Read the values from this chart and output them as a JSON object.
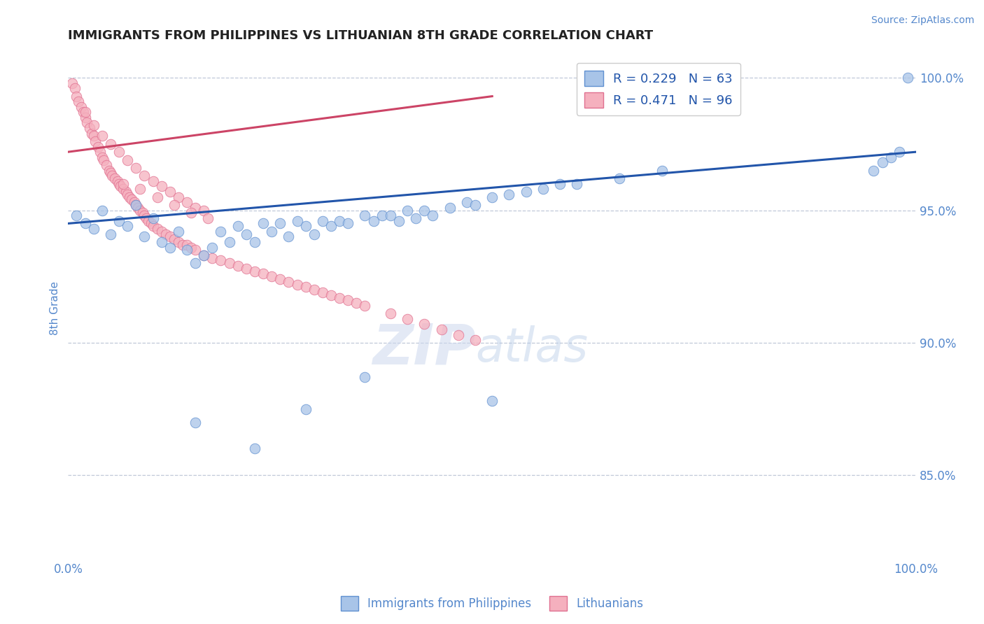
{
  "title": "IMMIGRANTS FROM PHILIPPINES VS LITHUANIAN 8TH GRADE CORRELATION CHART",
  "source_text": "Source: ZipAtlas.com",
  "ylabel": "8th Grade",
  "watermark_zip": "ZIP",
  "watermark_atlas": "atlas",
  "blue_label": "Immigrants from Philippines",
  "pink_label": "Lithuanians",
  "blue_R": 0.229,
  "blue_N": 63,
  "pink_R": 0.471,
  "pink_N": 96,
  "blue_color": "#a8c4e8",
  "pink_color": "#f5b0be",
  "blue_edge_color": "#6090d0",
  "pink_edge_color": "#e07090",
  "blue_line_color": "#2255aa",
  "pink_line_color": "#cc4466",
  "xlim": [
    0.0,
    1.0
  ],
  "ylim": [
    0.818,
    1.008
  ],
  "yticks": [
    0.85,
    0.9,
    0.95,
    1.0
  ],
  "ytick_labels": [
    "85.0%",
    "90.0%",
    "95.0%",
    "100.0%"
  ],
  "xtick_labels": [
    "0.0%",
    "100.0%"
  ],
  "title_fontsize": 13,
  "axis_label_color": "#5588cc",
  "grid_color": "#c0c8d8",
  "blue_scatter_x": [
    0.01,
    0.02,
    0.03,
    0.04,
    0.05,
    0.06,
    0.07,
    0.08,
    0.09,
    0.1,
    0.11,
    0.12,
    0.13,
    0.14,
    0.15,
    0.16,
    0.17,
    0.18,
    0.19,
    0.2,
    0.21,
    0.22,
    0.23,
    0.24,
    0.25,
    0.26,
    0.27,
    0.28,
    0.29,
    0.3,
    0.31,
    0.32,
    0.33,
    0.35,
    0.36,
    0.37,
    0.38,
    0.39,
    0.4,
    0.41,
    0.42,
    0.43,
    0.45,
    0.47,
    0.48,
    0.5,
    0.52,
    0.54,
    0.56,
    0.58,
    0.6,
    0.65,
    0.7,
    0.95,
    0.96,
    0.97,
    0.98,
    0.99,
    0.15,
    0.22,
    0.28,
    0.35,
    0.5
  ],
  "blue_scatter_y": [
    0.948,
    0.945,
    0.943,
    0.95,
    0.941,
    0.946,
    0.944,
    0.952,
    0.94,
    0.947,
    0.938,
    0.936,
    0.942,
    0.935,
    0.93,
    0.933,
    0.936,
    0.942,
    0.938,
    0.944,
    0.941,
    0.938,
    0.945,
    0.942,
    0.945,
    0.94,
    0.946,
    0.944,
    0.941,
    0.946,
    0.944,
    0.946,
    0.945,
    0.948,
    0.946,
    0.948,
    0.948,
    0.946,
    0.95,
    0.947,
    0.95,
    0.948,
    0.951,
    0.953,
    0.952,
    0.955,
    0.956,
    0.957,
    0.958,
    0.96,
    0.96,
    0.962,
    0.965,
    0.965,
    0.968,
    0.97,
    0.972,
    1.0,
    0.87,
    0.86,
    0.875,
    0.887,
    0.878
  ],
  "pink_scatter_x": [
    0.005,
    0.008,
    0.01,
    0.012,
    0.015,
    0.018,
    0.02,
    0.022,
    0.025,
    0.028,
    0.03,
    0.032,
    0.035,
    0.038,
    0.04,
    0.042,
    0.045,
    0.048,
    0.05,
    0.052,
    0.055,
    0.058,
    0.06,
    0.062,
    0.065,
    0.068,
    0.07,
    0.072,
    0.075,
    0.078,
    0.08,
    0.082,
    0.085,
    0.088,
    0.09,
    0.092,
    0.095,
    0.098,
    0.1,
    0.105,
    0.11,
    0.115,
    0.12,
    0.125,
    0.13,
    0.135,
    0.14,
    0.145,
    0.15,
    0.16,
    0.17,
    0.18,
    0.19,
    0.2,
    0.21,
    0.22,
    0.23,
    0.24,
    0.25,
    0.26,
    0.27,
    0.28,
    0.29,
    0.3,
    0.31,
    0.32,
    0.33,
    0.34,
    0.35,
    0.38,
    0.4,
    0.42,
    0.44,
    0.46,
    0.48,
    0.02,
    0.03,
    0.04,
    0.05,
    0.06,
    0.07,
    0.08,
    0.09,
    0.1,
    0.11,
    0.12,
    0.13,
    0.14,
    0.15,
    0.16,
    0.065,
    0.085,
    0.105,
    0.125,
    0.145,
    0.165
  ],
  "pink_scatter_y": [
    0.998,
    0.996,
    0.993,
    0.991,
    0.989,
    0.987,
    0.985,
    0.983,
    0.981,
    0.979,
    0.978,
    0.976,
    0.974,
    0.972,
    0.97,
    0.969,
    0.967,
    0.965,
    0.964,
    0.963,
    0.962,
    0.961,
    0.96,
    0.959,
    0.958,
    0.957,
    0.956,
    0.955,
    0.954,
    0.953,
    0.952,
    0.951,
    0.95,
    0.949,
    0.948,
    0.947,
    0.946,
    0.945,
    0.944,
    0.943,
    0.942,
    0.941,
    0.94,
    0.939,
    0.938,
    0.937,
    0.937,
    0.936,
    0.935,
    0.933,
    0.932,
    0.931,
    0.93,
    0.929,
    0.928,
    0.927,
    0.926,
    0.925,
    0.924,
    0.923,
    0.922,
    0.921,
    0.92,
    0.919,
    0.918,
    0.917,
    0.916,
    0.915,
    0.914,
    0.911,
    0.909,
    0.907,
    0.905,
    0.903,
    0.901,
    0.987,
    0.982,
    0.978,
    0.975,
    0.972,
    0.969,
    0.966,
    0.963,
    0.961,
    0.959,
    0.957,
    0.955,
    0.953,
    0.951,
    0.95,
    0.96,
    0.958,
    0.955,
    0.952,
    0.949,
    0.947
  ],
  "blue_trend_x": [
    0.0,
    1.0
  ],
  "blue_trend_y": [
    0.945,
    0.972
  ],
  "pink_trend_x": [
    0.0,
    0.5
  ],
  "pink_trend_y": [
    0.972,
    0.993
  ]
}
